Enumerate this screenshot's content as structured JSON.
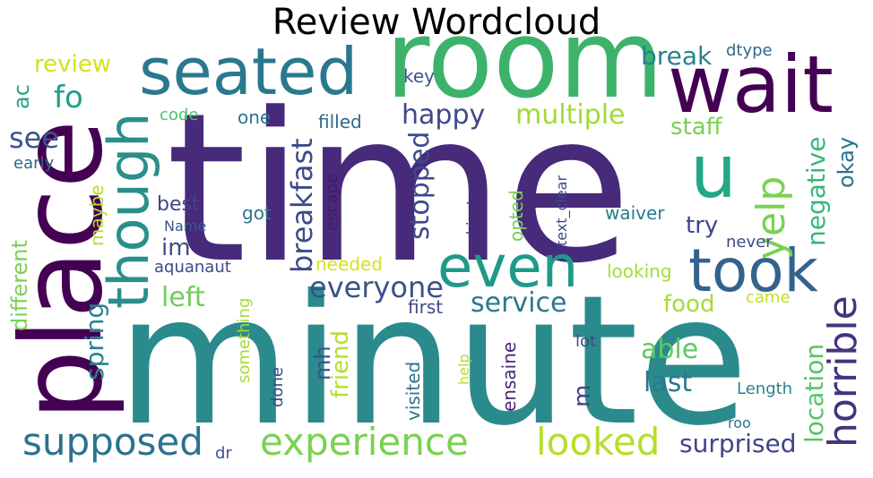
{
  "title": "Review Wordcloud",
  "words": [
    {
      "text": "time",
      "color": "#472a7a"
    },
    {
      "text": "minute",
      "color": "#2b8a8c"
    },
    {
      "text": "room",
      "color": "#3db26b"
    },
    {
      "text": "place",
      "color": "#440154"
    },
    {
      "text": "wait",
      "color": "#440154"
    },
    {
      "text": "seated",
      "color": "#2a788e"
    },
    {
      "text": "though",
      "color": "#2a8f8a"
    },
    {
      "text": "even",
      "color": "#1f9a8a"
    },
    {
      "text": "took",
      "color": "#33638d"
    },
    {
      "text": "experience",
      "color": "#7ad151"
    },
    {
      "text": "looked",
      "color": "#b5de2b"
    },
    {
      "text": "supposed",
      "color": "#2c728e"
    },
    {
      "text": "u",
      "color": "#22a884"
    },
    {
      "text": "yelp",
      "color": "#7ad151"
    },
    {
      "text": "horrible",
      "color": "#46337e"
    },
    {
      "text": "everyone",
      "color": "#3b528b"
    },
    {
      "text": "breakfast",
      "color": "#3e4a89"
    },
    {
      "text": "multiple",
      "color": "#a0da39"
    },
    {
      "text": "happy",
      "color": "#3e4989"
    },
    {
      "text": "stopped",
      "color": "#3e4989"
    },
    {
      "text": "service",
      "color": "#2a788e"
    },
    {
      "text": "left",
      "color": "#6ece58"
    },
    {
      "text": "see",
      "color": "#39568c"
    },
    {
      "text": "fo",
      "color": "#1f9e89"
    },
    {
      "text": "review",
      "color": "#d2e21b"
    },
    {
      "text": "ac",
      "color": "#20a386"
    },
    {
      "text": "break",
      "color": "#25838e"
    },
    {
      "text": "dtype",
      "color": "#31688e"
    },
    {
      "text": "key",
      "color": "#39568c"
    },
    {
      "text": "staff",
      "color": "#7ad151"
    },
    {
      "text": "negative",
      "color": "#35b779"
    },
    {
      "text": "okay",
      "color": "#2c718e"
    },
    {
      "text": "location",
      "color": "#54c568"
    },
    {
      "text": "try",
      "color": "#404588"
    },
    {
      "text": "im",
      "color": "#3e4a89"
    },
    {
      "text": "food",
      "color": "#a5db36"
    },
    {
      "text": "able",
      "color": "#5ec962"
    },
    {
      "text": "last",
      "color": "#2a788e"
    },
    {
      "text": "surprised",
      "color": "#414487"
    },
    {
      "text": "friend",
      "color": "#b5de2b"
    },
    {
      "text": "mh",
      "color": "#3b528b"
    },
    {
      "text": "m",
      "color": "#424186"
    },
    {
      "text": "spring",
      "color": "#26828e"
    },
    {
      "text": "different",
      "color": "#7ad151"
    },
    {
      "text": "maybe",
      "color": "#b5de2b"
    },
    {
      "text": "early",
      "color": "#31688e"
    },
    {
      "text": "code",
      "color": "#4ac16d"
    },
    {
      "text": "one",
      "color": "#2c728e"
    },
    {
      "text": "filled",
      "color": "#31688e"
    },
    {
      "text": "escape",
      "color": "#48186a"
    },
    {
      "text": "best",
      "color": "#414487"
    },
    {
      "text": "got",
      "color": "#2c728e"
    },
    {
      "text": "Name",
      "color": "#39568c"
    },
    {
      "text": "aquanaut",
      "color": "#3e4989"
    },
    {
      "text": "needed",
      "color": "#d8e219"
    },
    {
      "text": "object",
      "color": "#482878"
    },
    {
      "text": "opted",
      "color": "#7ad151"
    },
    {
      "text": "text_clear",
      "color": "#3e4a89"
    },
    {
      "text": "waiver",
      "color": "#287c8e"
    },
    {
      "text": "never",
      "color": "#3e4989"
    },
    {
      "text": "looking",
      "color": "#a5db36"
    },
    {
      "text": "came",
      "color": "#c2df23"
    },
    {
      "text": "first",
      "color": "#3e4989"
    },
    {
      "text": "lot",
      "color": "#3e4989"
    },
    {
      "text": "something",
      "color": "#a5db36"
    },
    {
      "text": "done",
      "color": "#3e4989"
    },
    {
      "text": "visited",
      "color": "#2c728e"
    },
    {
      "text": "help",
      "color": "#b5de2b"
    },
    {
      "text": "ensaine",
      "color": "#482878"
    },
    {
      "text": "Length",
      "color": "#26828e"
    },
    {
      "text": "roo",
      "color": "#2c728e"
    },
    {
      "text": "dr",
      "color": "#39568c"
    }
  ]
}
